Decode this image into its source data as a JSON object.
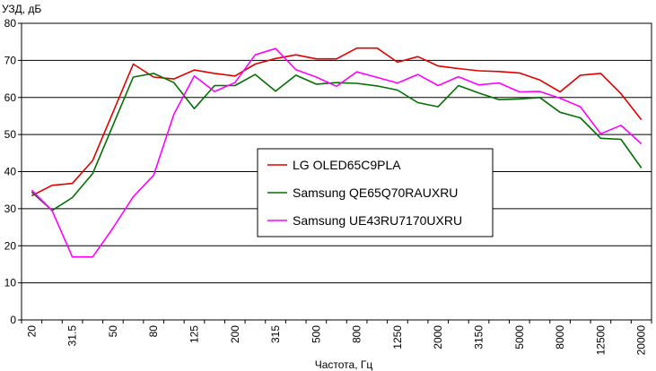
{
  "chart_data": {
    "type": "line",
    "title": "",
    "ylabel": "УЗД, дБ",
    "xlabel": "Частота, Гц",
    "ylim": [
      0,
      80
    ],
    "yticks": [
      0,
      10,
      20,
      30,
      40,
      50,
      60,
      70,
      80
    ],
    "grid": "horizontal",
    "legend_position": "center",
    "x_labels": [
      "20",
      "",
      "31.5",
      "",
      "50",
      "",
      "80",
      "",
      "125",
      "",
      "200",
      "",
      "315",
      "",
      "500",
      "",
      "800",
      "",
      "1250",
      "",
      "2000",
      "",
      "3150",
      "",
      "5000",
      "",
      "8000",
      "",
      "12500",
      "",
      "20000"
    ],
    "series": [
      {
        "name": "LG OLED65C9PLA",
        "color": "#e00000",
        "values": [
          33.5,
          36.3,
          36.8,
          43,
          56,
          69,
          65.5,
          65,
          67.4,
          66.5,
          65.8,
          69,
          70.5,
          71.5,
          70.4,
          70.4,
          73.3,
          73.3,
          69.5,
          71,
          68.5,
          67.8,
          67.2,
          67,
          66.6,
          64.7,
          61.5,
          66,
          66.5,
          61,
          54
        ]
      },
      {
        "name": "Samsung QE65Q70RAUXRU",
        "color": "#007000",
        "values": [
          34.5,
          29.5,
          33,
          39.5,
          52.5,
          65.5,
          66.5,
          64,
          57,
          63.2,
          63.2,
          66.2,
          61.7,
          66,
          63.6,
          64,
          63.8,
          63.1,
          62,
          58.6,
          57.5,
          63.2,
          61.2,
          59.4,
          59.6,
          60,
          56,
          54.5,
          49,
          48.7,
          41
        ]
      },
      {
        "name": "Samsung UE43RU7170UXRU",
        "color": "#ff00ff",
        "values": [
          35,
          29.5,
          17,
          17,
          24.8,
          33.2,
          39,
          55.5,
          65.8,
          61.6,
          64,
          71.5,
          73.2,
          67.5,
          65.5,
          63,
          66.9,
          65.4,
          63.9,
          66.2,
          63.2,
          65.6,
          63.4,
          63.9,
          61.5,
          61.6,
          59.8,
          57.5,
          50.2,
          52.5,
          47.5
        ]
      }
    ]
  }
}
